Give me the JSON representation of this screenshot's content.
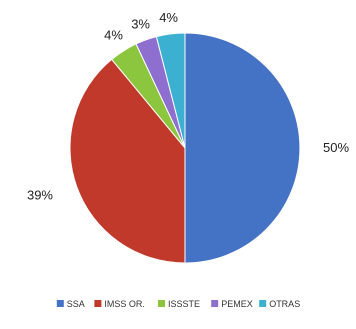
{
  "chart_data": {
    "type": "pie",
    "title": "",
    "categories": [
      "SSA",
      "IMSS OR.",
      "ISSSTE",
      "PEMEX",
      "OTRAS"
    ],
    "values": [
      50,
      39,
      4,
      3,
      4
    ],
    "value_labels": [
      "50%",
      "39%",
      "4%",
      "3%",
      "4%"
    ],
    "colors": [
      "#4472C4",
      "#C0392B",
      "#8CC63F",
      "#8E6FD0",
      "#3BB0D0"
    ],
    "legend_position": "bottom"
  }
}
